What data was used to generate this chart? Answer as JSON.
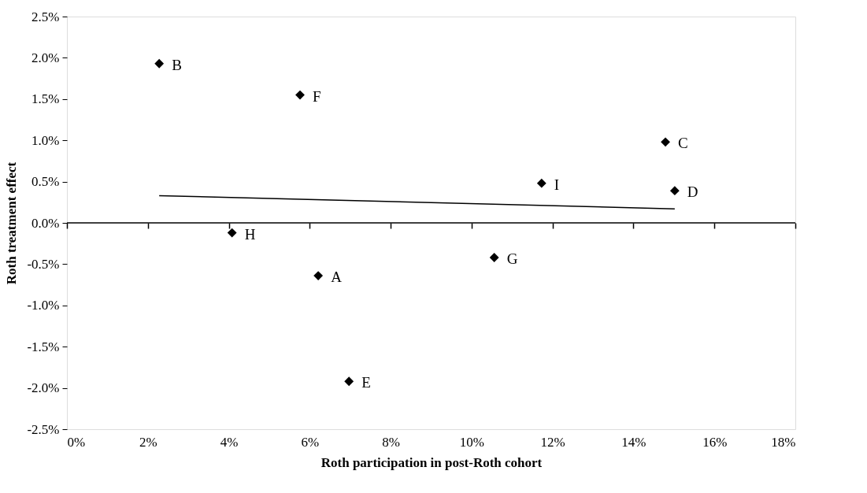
{
  "chart_data": {
    "type": "scatter",
    "xlabel": "Roth participation in post-Roth cohort",
    "ylabel": "Roth treatment effect",
    "series": [
      {
        "type": "scatter",
        "color": "#000000",
        "marker": "diamond",
        "x": [
          2.28,
          5.76,
          4.08,
          6.21,
          6.97,
          10.56,
          11.73,
          14.79,
          15.02
        ],
        "values": [
          1.93,
          1.55,
          -0.12,
          -0.64,
          -1.92,
          -0.42,
          0.48,
          0.98,
          0.39
        ]
      },
      {
        "type": "line",
        "color": "#000000",
        "line_style": "solid",
        "x": [
          2.28,
          15.02
        ],
        "values": [
          0.33,
          0.17
        ]
      }
    ],
    "annotations": [
      {
        "text": "B",
        "x": 2.28,
        "y": 1.93
      },
      {
        "text": "F",
        "x": 5.76,
        "y": 1.55
      },
      {
        "text": "H",
        "x": 4.08,
        "y": -0.12
      },
      {
        "text": "A",
        "x": 6.21,
        "y": -0.64
      },
      {
        "text": "E",
        "x": 6.97,
        "y": -1.92
      },
      {
        "text": "G",
        "x": 10.56,
        "y": -0.42
      },
      {
        "text": "I",
        "x": 11.73,
        "y": 0.48
      },
      {
        "text": "C",
        "x": 14.79,
        "y": 0.98
      },
      {
        "text": "D",
        "x": 15.02,
        "y": 0.39
      }
    ],
    "ref_lines": [
      {
        "axis": "y",
        "value": 0,
        "color": "#000000",
        "line_style": "solid"
      }
    ],
    "xlim": [
      0,
      18
    ],
    "xticks": [
      {
        "value": 0,
        "label": "0%"
      },
      {
        "value": 2,
        "label": "2%"
      },
      {
        "value": 4,
        "label": "4%"
      },
      {
        "value": 6,
        "label": "6%"
      },
      {
        "value": 8,
        "label": "8%"
      },
      {
        "value": 10,
        "label": "10%"
      },
      {
        "value": 12,
        "label": "12%"
      },
      {
        "value": 14,
        "label": "14%"
      },
      {
        "value": 16,
        "label": "16%"
      },
      {
        "value": 18,
        "label": "18%"
      }
    ],
    "ylim": [
      -2.5,
      2.5
    ],
    "yticks": [
      {
        "value": -2.5,
        "label": "-2.5%"
      },
      {
        "value": -2,
        "label": "-2.0%"
      },
      {
        "value": -1.5,
        "label": "-1.5%"
      },
      {
        "value": -1,
        "label": "-1.0%"
      },
      {
        "value": -0.5,
        "label": "-0.5%"
      },
      {
        "value": 0,
        "label": "0.0%"
      },
      {
        "value": 0.5,
        "label": "0.5%"
      },
      {
        "value": 1,
        "label": "1.0%"
      },
      {
        "value": 1.5,
        "label": "1.5%"
      },
      {
        "value": 2,
        "label": "2.0%"
      },
      {
        "value": 2.5,
        "label": "2.5%"
      }
    ],
    "grid": false
  }
}
